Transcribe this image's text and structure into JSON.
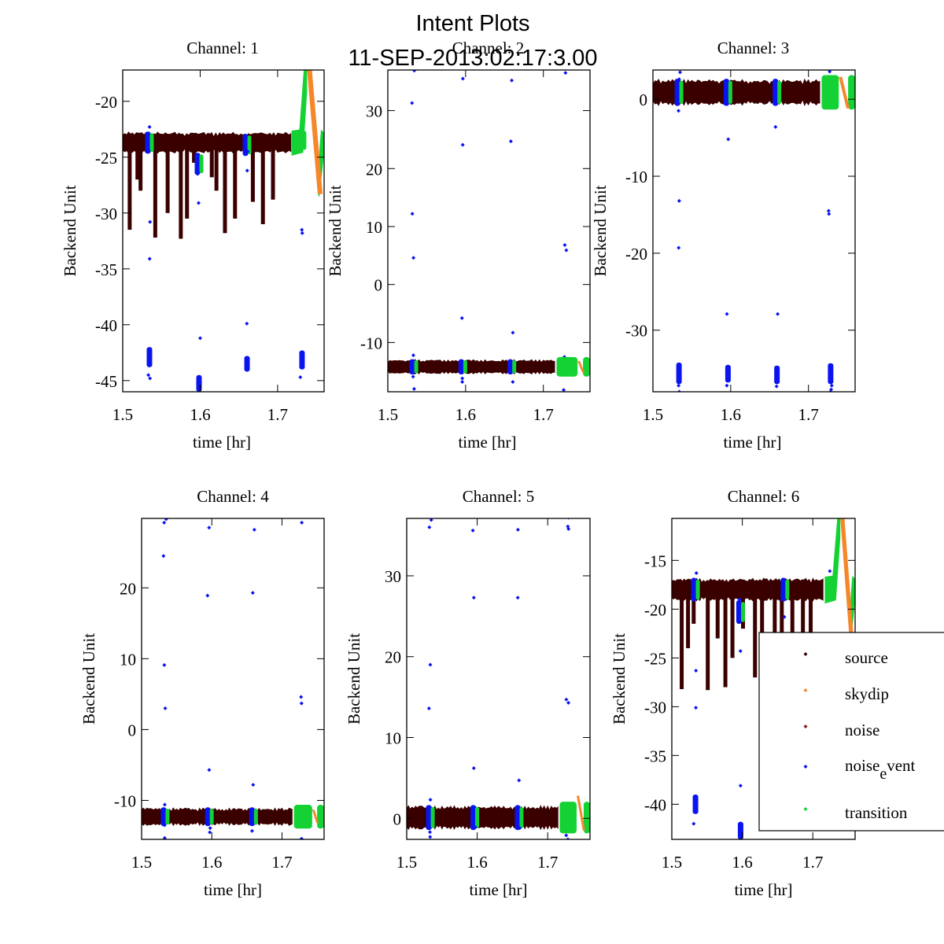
{
  "figure": {
    "title_line1": "Intent Plots",
    "title_line2": "11-SEP-2013:02:17:3.00"
  },
  "legend": {
    "placement": "lower-right of channel 6 panel",
    "entries": [
      {
        "label": "source",
        "color": "#3a0000"
      },
      {
        "label": "skydip",
        "color": "#f5872a"
      },
      {
        "label": "noise",
        "color": "#8c1a1a"
      },
      {
        "label_main": "noise",
        "label_sub": "e",
        "label_rest": "vent",
        "color": "#0a14f0"
      },
      {
        "label": "transition",
        "color": "#14d234"
      }
    ]
  },
  "colors": {
    "source": "#3a0000",
    "skydip": "#f5872a",
    "noise": "#8c1a1a",
    "noise_event": "#0a14f0",
    "transition": "#14d234"
  },
  "chart_data": [
    {
      "type": "scatter",
      "title": "Channel: 1",
      "xlabel": "time [hr]",
      "ylabel": "Backend Unit",
      "xlim": [
        1.5,
        1.76
      ],
      "ylim": [
        -46,
        -17.2
      ],
      "xticks": [
        1.5,
        1.6,
        1.7
      ],
      "xtick_labels": [
        "1.5",
        "1.6",
        "1.7"
      ],
      "yticks": [
        -45,
        -40,
        -35,
        -30,
        -25,
        -20
      ],
      "ytick_labels": [
        "-45",
        "-40",
        "-35",
        "-30",
        "-25",
        "-20"
      ],
      "baseline": -23.7,
      "band_halfwidth": 0.9,
      "dips": [
        [
          1.509,
          -31.5
        ],
        [
          1.519,
          -27
        ],
        [
          1.523,
          -28
        ],
        [
          1.542,
          -32.2
        ],
        [
          1.558,
          -30
        ],
        [
          1.575,
          -32.3
        ],
        [
          1.583,
          -30.5
        ],
        [
          1.592,
          -25.5
        ],
        [
          1.615,
          -26.8
        ],
        [
          1.621,
          -28
        ],
        [
          1.632,
          -31.8
        ],
        [
          1.645,
          -30.5
        ],
        [
          1.668,
          -29
        ],
        [
          1.681,
          -31
        ],
        [
          1.694,
          -28.8
        ]
      ],
      "noise_events": [
        {
          "x": 1.534,
          "center": -23.7,
          "cluster": [
            -42,
            -43.8
          ],
          "outliers": [
            -22.3,
            -24.4,
            -30.8,
            -34.1,
            -44.5,
            -44.8
          ]
        },
        {
          "x": 1.598,
          "center": -25.6,
          "cluster": [
            -44.5,
            -46
          ],
          "outliers": [
            -41.2,
            -29.1,
            -26.5
          ]
        },
        {
          "x": 1.66,
          "center": -23.9,
          "cluster": [
            -42.8,
            -44.2
          ],
          "outliers": [
            -39.9,
            -26.2,
            -24.5
          ]
        },
        {
          "x": 1.731,
          "center": -23.5,
          "cluster": [
            -42.3,
            -44
          ],
          "outliers": [
            -31.5,
            -31.8,
            -44.7,
            -21.8,
            -22.6
          ]
        }
      ],
      "transition_segments": [
        [
          1.718,
          1.738
        ],
        [
          1.752,
          1.76
        ]
      ],
      "skydip": {
        "x_start": 1.738,
        "x_end": 1.756,
        "peak": -17.2,
        "trough": -28.3
      }
    },
    {
      "type": "scatter",
      "title": "Channel: 2",
      "xlabel": "time [hr]",
      "ylabel": "Backend Unit",
      "xlim": [
        1.5,
        1.76
      ],
      "ylim": [
        -18.5,
        37
      ],
      "xticks": [
        1.5,
        1.6,
        1.7
      ],
      "xtick_labels": [
        "1.5",
        "1.6",
        "1.7"
      ],
      "yticks": [
        -10,
        0,
        10,
        20,
        30
      ],
      "ytick_labels": [
        "-10",
        "0",
        "10",
        "20",
        "30"
      ],
      "baseline": -14.2,
      "band_halfwidth": 1.2,
      "dips": [],
      "noise_events": [
        {
          "x": 1.533,
          "center": -14.2,
          "cluster": [
            32.2,
            35
          ],
          "outliers": [
            36.9,
            31.3,
            12.2,
            4.6,
            -12.2,
            -15.9,
            -18
          ]
        },
        {
          "x": 1.596,
          "center": -14.2,
          "cluster": [
            32.3,
            35
          ],
          "outliers": [
            35.5,
            24.1,
            -5.8,
            -16.2,
            -16.8
          ]
        },
        {
          "x": 1.659,
          "center": -14.2,
          "cluster": [
            32.6,
            34.8
          ],
          "outliers": [
            35.2,
            24.7,
            -8.3,
            -16.8
          ]
        },
        {
          "x": 1.728,
          "center": -14.2,
          "cluster": [
            32,
            34.8
          ],
          "outliers": [
            36.5,
            6.8,
            5.9,
            -12.5,
            -18.2
          ]
        }
      ],
      "transition_segments": [
        [
          1.717,
          1.744
        ],
        [
          1.751,
          1.76
        ]
      ],
      "skydip": {
        "x_start": 1.744,
        "x_end": 1.751,
        "peak": -13.2,
        "trough": -15.2
      }
    },
    {
      "type": "scatter",
      "title": "Channel: 3",
      "xlabel": "time [hr]",
      "ylabel": "Backend Unit",
      "xlim": [
        1.5,
        1.76
      ],
      "ylim": [
        -38,
        3.8
      ],
      "xticks": [
        1.5,
        1.6,
        1.7
      ],
      "xtick_labels": [
        "1.5",
        "1.6",
        "1.7"
      ],
      "yticks": [
        -30,
        -20,
        -10,
        0
      ],
      "ytick_labels": [
        "-30",
        "-20",
        "-10",
        "0"
      ],
      "baseline": 0.9,
      "band_halfwidth": 1.6,
      "dips": [],
      "noise_events": [
        {
          "x": 1.533,
          "center": 0.9,
          "cluster": [
            -34.2,
            -37
          ],
          "outliers": [
            3.5,
            2.6,
            -1.5,
            -13.2,
            -19.3,
            -37.2,
            -38
          ]
        },
        {
          "x": 1.596,
          "center": 0.9,
          "cluster": [
            -34.5,
            -36.8
          ],
          "outliers": [
            -5.2,
            -27.9,
            -37.2
          ]
        },
        {
          "x": 1.659,
          "center": 0.9,
          "cluster": [
            -34.6,
            -37
          ],
          "outliers": [
            2,
            -3.6,
            -27.9,
            -37.3
          ]
        },
        {
          "x": 1.728,
          "center": 0.9,
          "cluster": [
            -34.3,
            -37
          ],
          "outliers": [
            3.6,
            -14.5,
            -14.9,
            -37.2,
            -37.7,
            -38
          ]
        }
      ],
      "transition_segments": [
        [
          1.717,
          1.739
        ],
        [
          1.751,
          1.76
        ]
      ],
      "skydip": {
        "x_start": 1.739,
        "x_end": 1.751,
        "peak": 2.9,
        "trough": -1.2
      }
    },
    {
      "type": "scatter",
      "title": "Channel: 4",
      "xlabel": "time [hr]",
      "ylabel": "Backend Unit",
      "xlim": [
        1.5,
        1.76
      ],
      "ylim": [
        -15.5,
        29.8
      ],
      "xticks": [
        1.5,
        1.6,
        1.7
      ],
      "xtick_labels": [
        "1.5",
        "1.6",
        "1.7"
      ],
      "yticks": [
        -10,
        0,
        10,
        20
      ],
      "ytick_labels": [
        "-10",
        "0",
        "10",
        "20"
      ],
      "baseline": -12.3,
      "band_halfwidth": 1.2,
      "dips": [],
      "noise_events": [
        {
          "x": 1.533,
          "center": -12.3,
          "cluster": [
            25.8,
            27.8
          ],
          "outliers": [
            29.7,
            29.2,
            24.5,
            9.1,
            3,
            -10.6,
            -13.5,
            -15.3,
            -15.6
          ]
        },
        {
          "x": 1.596,
          "center": -12.3,
          "cluster": [
            25.8,
            27.6
          ],
          "outliers": [
            28.5,
            18.9,
            -5.7,
            -13.9,
            -14.5
          ]
        },
        {
          "x": 1.659,
          "center": -12.3,
          "cluster": [
            26,
            27.4
          ],
          "outliers": [
            28.2,
            19.3,
            -7.8,
            -14.3
          ]
        },
        {
          "x": 1.728,
          "center": -12.3,
          "cluster": [
            25.8,
            27.6
          ],
          "outliers": [
            29.2,
            4.6,
            3.7,
            -11.1,
            -15.4,
            -15.6
          ]
        }
      ],
      "transition_segments": [
        [
          1.717,
          1.743
        ],
        [
          1.75,
          1.76
        ]
      ],
      "skydip": {
        "x_start": 1.743,
        "x_end": 1.75,
        "peak": -11.3,
        "trough": -13.2
      }
    },
    {
      "type": "scatter",
      "title": "Channel: 5",
      "xlabel": "time [hr]",
      "ylabel": "Backend Unit",
      "xlim": [
        1.5,
        1.76
      ],
      "ylim": [
        -2.6,
        37.1
      ],
      "xticks": [
        1.5,
        1.6,
        1.7
      ],
      "xtick_labels": [
        "1.5",
        "1.6",
        "1.7"
      ],
      "yticks": [
        0,
        10,
        20,
        30
      ],
      "ytick_labels": [
        "0",
        "10",
        "20",
        "30"
      ],
      "baseline": 0.1,
      "band_halfwidth": 1.4,
      "dips": [],
      "noise_events": [
        {
          "x": 1.533,
          "center": 0.1,
          "cluster": [
            32.9,
            35.3
          ],
          "outliers": [
            36.9,
            36,
            19,
            13.6,
            2.3,
            -1.7,
            -2.3
          ]
        },
        {
          "x": 1.596,
          "center": 0.1,
          "cluster": [
            33,
            35
          ],
          "outliers": [
            35.6,
            27.3,
            6.2,
            -1.1
          ]
        },
        {
          "x": 1.659,
          "center": 0.1,
          "cluster": [
            33,
            35
          ],
          "outliers": [
            35.7,
            27.3,
            4.7,
            -1.2
          ]
        },
        {
          "x": 1.728,
          "center": 0.1,
          "cluster": [
            32.8,
            35.2
          ],
          "outliers": [
            37.2,
            36.1,
            35.8,
            14.7,
            14.3,
            -2.1,
            -2.6
          ]
        }
      ],
      "transition_segments": [
        [
          1.717,
          1.741
        ],
        [
          1.751,
          1.76
        ]
      ],
      "skydip": {
        "x_start": 1.741,
        "x_end": 1.751,
        "peak": 2.8,
        "trough": -1.5
      }
    },
    {
      "type": "scatter",
      "title": "Channel: 6",
      "xlabel": "time [hr]",
      "ylabel": "Backend Unit",
      "xlim": [
        1.5,
        1.76
      ],
      "ylim": [
        -43.6,
        -10.7
      ],
      "xticks": [
        1.5,
        1.6,
        1.7
      ],
      "xtick_labels": [
        "1.5",
        "1.6",
        "1.7"
      ],
      "yticks": [
        -40,
        -35,
        -30,
        -25,
        -20,
        -15
      ],
      "ytick_labels": [
        "-40",
        "-35",
        "-30",
        "-25",
        "-20",
        "-15"
      ],
      "baseline": -18,
      "band_halfwidth": 1.1,
      "dips": [
        [
          1.514,
          -28.2
        ],
        [
          1.523,
          -24
        ],
        [
          1.531,
          -21.5
        ],
        [
          1.551,
          -28.3
        ],
        [
          1.565,
          -23
        ],
        [
          1.576,
          -28
        ],
        [
          1.586,
          -25
        ],
        [
          1.601,
          -22
        ],
        [
          1.618,
          -27
        ],
        [
          1.628,
          -25.5
        ],
        [
          1.646,
          -24
        ],
        [
          1.656,
          -25
        ],
        [
          1.671,
          -27
        ],
        [
          1.686,
          -26.5
        ],
        [
          1.697,
          -23.5
        ]
      ],
      "noise_events": [
        {
          "x": 1.533,
          "center": -18,
          "cluster": [
            -39,
            -41
          ],
          "outliers": [
            -16.3,
            -19,
            -26.3,
            -30.1,
            -42
          ]
        },
        {
          "x": 1.597,
          "center": -20.3,
          "cluster": [
            -41.8,
            -43.6
          ],
          "outliers": [
            -19,
            -24.3,
            -38.1
          ]
        },
        {
          "x": 1.66,
          "center": -18,
          "cluster": [],
          "outliers": [
            -20.8
          ]
        },
        {
          "x": 1.726,
          "center": -18,
          "cluster": [],
          "outliers": [
            -16.1,
            -18.9
          ]
        }
      ],
      "transition_segments": [
        [
          1.717,
          1.739
        ],
        [
          1.752,
          1.76
        ]
      ],
      "skydip": {
        "x_start": 1.739,
        "x_end": 1.756,
        "peak": -10.7,
        "trough": -23.3
      }
    }
  ]
}
